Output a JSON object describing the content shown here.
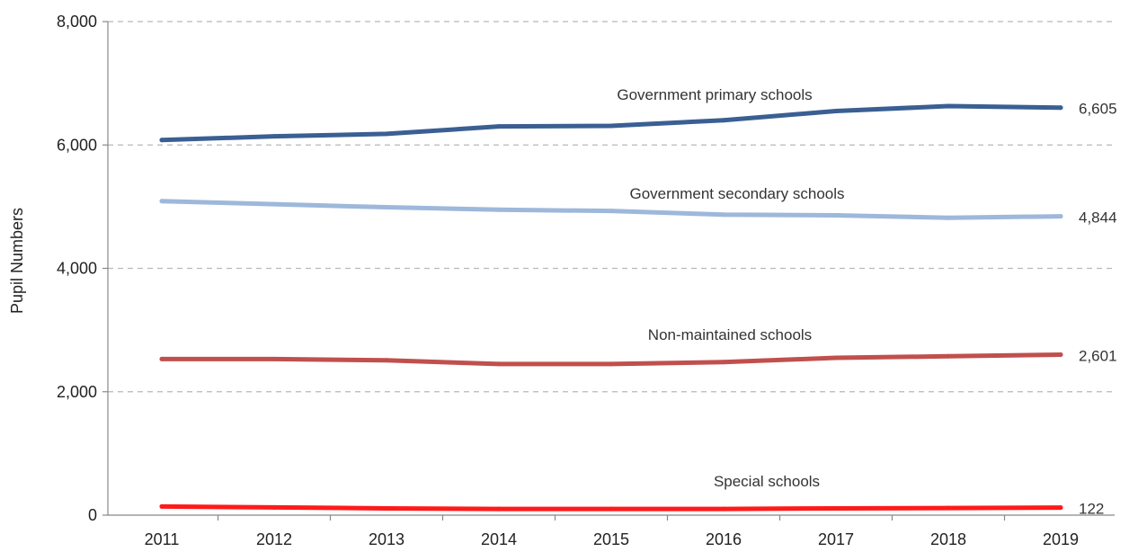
{
  "chart_data": {
    "type": "line",
    "ylabel": "Pupil Numbers",
    "xlabel": "",
    "ylim": [
      0,
      8000
    ],
    "yticks": [
      0,
      2000,
      4000,
      6000,
      8000
    ],
    "ytick_labels": [
      "0",
      "2,000",
      "4,000",
      "6,000",
      "8,000"
    ],
    "categories": [
      "2011",
      "2012",
      "2013",
      "2014",
      "2015",
      "2016",
      "2017",
      "2018",
      "2019"
    ],
    "grid": true,
    "series": [
      {
        "name": "Government primary schools",
        "color": "#3a5f93",
        "values": [
          6080,
          6140,
          6180,
          6300,
          6310,
          6400,
          6550,
          6630,
          6605
        ],
        "end_label": "6,605"
      },
      {
        "name": "Government secondary schools",
        "color": "#9db8da",
        "values": [
          5090,
          5040,
          4990,
          4950,
          4930,
          4870,
          4860,
          4820,
          4844
        ],
        "end_label": "4,844"
      },
      {
        "name": "Non-maintained schools",
        "color": "#c0504d",
        "values": [
          2530,
          2530,
          2510,
          2450,
          2450,
          2480,
          2550,
          2575,
          2601
        ],
        "end_label": "2,601"
      },
      {
        "name": "Special schools",
        "color": "#ff1a1a",
        "values": [
          140,
          125,
          110,
          100,
          100,
          100,
          110,
          115,
          122
        ],
        "end_label": "122"
      }
    ]
  }
}
